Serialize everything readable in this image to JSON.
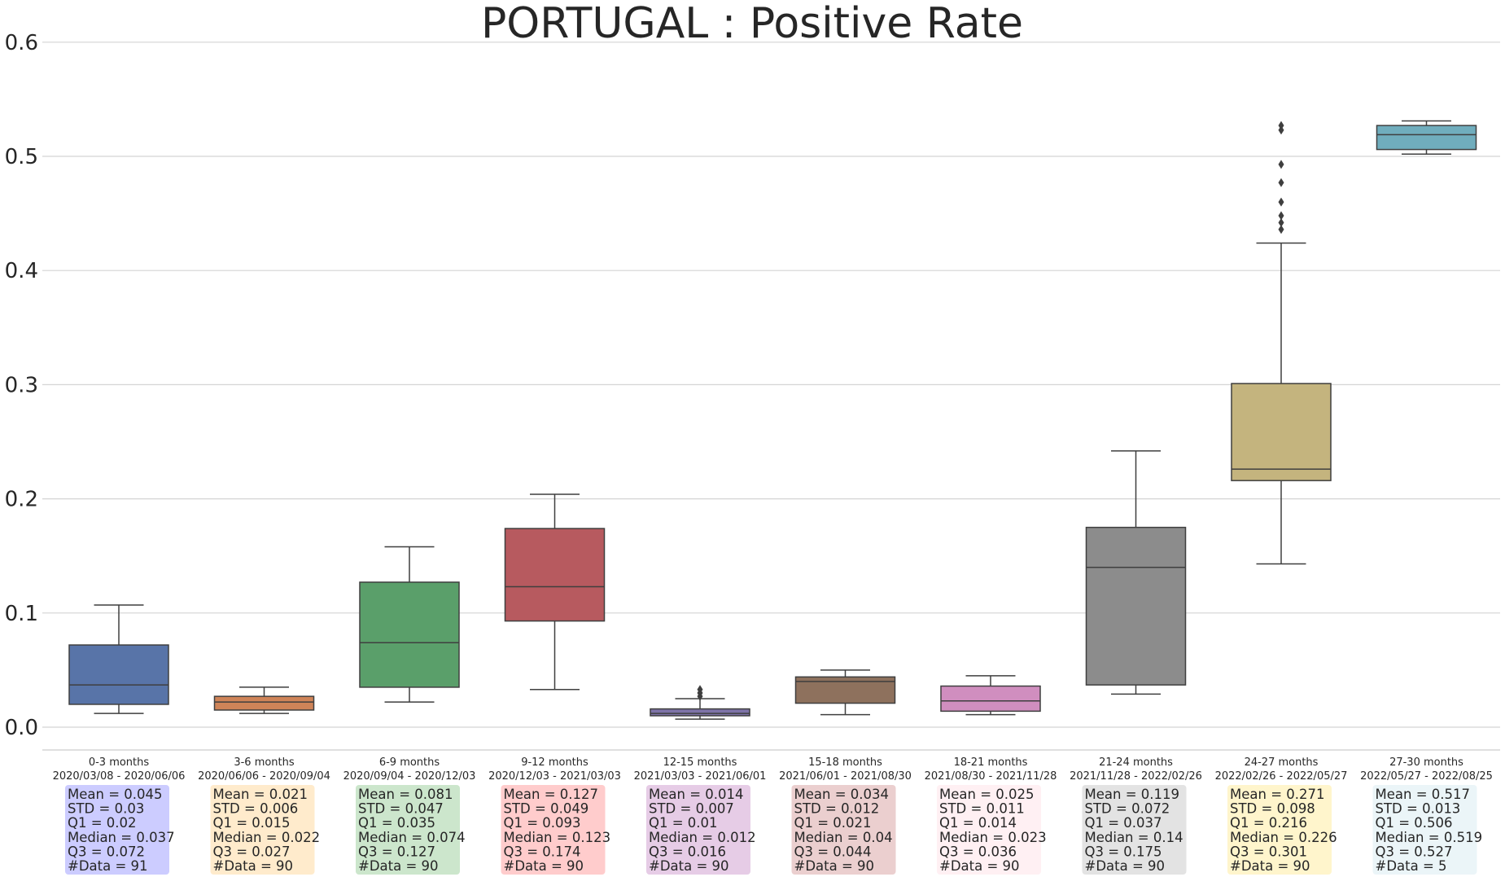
{
  "chart_data": {
    "type": "box",
    "title": "PORTUGAL : Positive Rate",
    "xlabel": "",
    "ylabel": "",
    "ylim": [
      -0.02,
      0.62
    ],
    "yticks": [
      "0.0",
      "0.1",
      "0.2",
      "0.3",
      "0.4",
      "0.5",
      "0.6"
    ],
    "grid": "horizontal",
    "groups": [
      {
        "period": "0-3 months",
        "dates": "2020/03/08 - 2020/06/06",
        "color": "#5874a8",
        "stat_bg": "#ccccff",
        "whisker_low": 0.012,
        "q1": 0.02,
        "median": 0.037,
        "q3": 0.072,
        "whisker_high": 0.107,
        "outliers": [],
        "stats": [
          "Mean = 0.045",
          "STD = 0.03",
          "Q1 = 0.02",
          "Median = 0.037",
          "Q3 = 0.072",
          "#Data = 91"
        ]
      },
      {
        "period": "3-6 months",
        "dates": "2020/06/06 - 2020/09/04",
        "color": "#cf8458",
        "stat_bg": "#ffebcc",
        "whisker_low": 0.012,
        "q1": 0.015,
        "median": 0.022,
        "q3": 0.027,
        "whisker_high": 0.035,
        "outliers": [],
        "stats": [
          "Mean = 0.021",
          "STD = 0.006",
          "Q1 = 0.015",
          "Median = 0.022",
          "Q3 = 0.027",
          "#Data = 90"
        ]
      },
      {
        "period": "6-9 months",
        "dates": "2020/09/04 - 2020/12/03",
        "color": "#5a9f6a",
        "stat_bg": "#cce6cc",
        "whisker_low": 0.022,
        "q1": 0.035,
        "median": 0.074,
        "q3": 0.127,
        "whisker_high": 0.158,
        "outliers": [],
        "stats": [
          "Mean = 0.081",
          "STD = 0.047",
          "Q1 = 0.035",
          "Median = 0.074",
          "Q3 = 0.127",
          "#Data = 90"
        ]
      },
      {
        "period": "9-12 months",
        "dates": "2020/12/03 - 2021/03/03",
        "color": "#b75a5f",
        "stat_bg": "#ffcccc",
        "whisker_low": 0.033,
        "q1": 0.093,
        "median": 0.123,
        "q3": 0.174,
        "whisker_high": 0.204,
        "outliers": [],
        "stats": [
          "Mean = 0.127",
          "STD = 0.049",
          "Q1 = 0.093",
          "Median = 0.123",
          "Q3 = 0.174",
          "#Data = 90"
        ]
      },
      {
        "period": "12-15 months",
        "dates": "2021/03/03 - 2021/06/01",
        "color": "#7e73a8",
        "stat_bg": "#e6cce6",
        "whisker_low": 0.007,
        "q1": 0.01,
        "median": 0.012,
        "q3": 0.016,
        "whisker_high": 0.025,
        "outliers": [
          0.027,
          0.03,
          0.033
        ],
        "stats": [
          "Mean = 0.014",
          "STD = 0.007",
          "Q1 = 0.01",
          "Median = 0.012",
          "Q3 = 0.016",
          "#Data = 90"
        ]
      },
      {
        "period": "15-18 months",
        "dates": "2021/06/01 - 2021/08/30",
        "color": "#8e715d",
        "stat_bg": "#ebcfcf",
        "whisker_low": 0.011,
        "q1": 0.021,
        "median": 0.04,
        "q3": 0.044,
        "whisker_high": 0.05,
        "outliers": [],
        "stats": [
          "Mean = 0.034",
          "STD = 0.012",
          "Q1 = 0.021",
          "Median = 0.04",
          "Q3 = 0.044",
          "#Data = 90"
        ]
      },
      {
        "period": "18-21 months",
        "dates": "2021/08/30 - 2021/11/28",
        "color": "#d08ebf",
        "stat_bg": "#fff0f3",
        "whisker_low": 0.011,
        "q1": 0.014,
        "median": 0.023,
        "q3": 0.036,
        "whisker_high": 0.045,
        "outliers": [],
        "stats": [
          "Mean = 0.025",
          "STD = 0.011",
          "Q1 = 0.014",
          "Median = 0.023",
          "Q3 = 0.036",
          "#Data = 90"
        ]
      },
      {
        "period": "21-24 months",
        "dates": "2021/11/28 - 2022/02/26",
        "color": "#8c8c8c",
        "stat_bg": "#e3e3e3",
        "whisker_low": 0.029,
        "q1": 0.037,
        "median": 0.14,
        "q3": 0.175,
        "whisker_high": 0.242,
        "outliers": [],
        "stats": [
          "Mean = 0.119",
          "STD = 0.072",
          "Q1 = 0.037",
          "Median = 0.14",
          "Q3 = 0.175",
          "#Data = 90"
        ]
      },
      {
        "period": "24-27 months",
        "dates": "2022/02/26 - 2022/05/27",
        "color": "#c4b47e",
        "stat_bg": "#fff5cc",
        "whisker_low": 0.143,
        "q1": 0.216,
        "median": 0.226,
        "q3": 0.301,
        "whisker_high": 0.424,
        "outliers": [
          0.436,
          0.442,
          0.448,
          0.46,
          0.477,
          0.493,
          0.523,
          0.527
        ],
        "stats": [
          "Mean = 0.271",
          "STD = 0.098",
          "Q1 = 0.216",
          "Median = 0.226",
          "Q3 = 0.301",
          "#Data = 90"
        ]
      },
      {
        "period": "27-30 months",
        "dates": "2022/05/27 - 2022/08/25",
        "color": "#70adbd",
        "stat_bg": "#ebf5f8",
        "whisker_low": 0.502,
        "q1": 0.506,
        "median": 0.519,
        "q3": 0.527,
        "whisker_high": 0.531,
        "outliers": [],
        "stats": [
          "Mean = 0.517",
          "STD = 0.013",
          "Q1 = 0.506",
          "Median = 0.519",
          "Q3 = 0.527",
          "#Data = 5"
        ]
      }
    ]
  }
}
